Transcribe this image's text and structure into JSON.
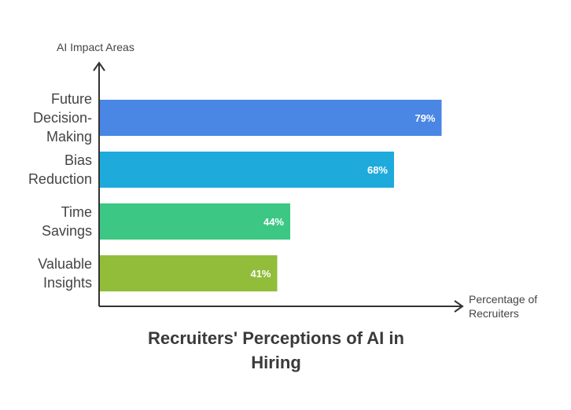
{
  "chart_data": {
    "type": "bar",
    "orientation": "horizontal",
    "title": "Recruiters' Perceptions of AI in Hiring",
    "ylabel": "AI Impact Areas",
    "xlabel": "Percentage of Recruiters",
    "categories": [
      "Future Decision-Making",
      "Bias Reduction",
      "Time Savings",
      "Valuable Insights"
    ],
    "category_lines": [
      [
        "Future",
        "Decision-",
        "Making"
      ],
      [
        "Bias",
        "Reduction"
      ],
      [
        "Time",
        "Savings"
      ],
      [
        "Valuable",
        "Insights"
      ]
    ],
    "values": [
      79,
      68,
      44,
      41
    ],
    "value_labels": [
      "79%",
      "68%",
      "44%",
      "41%"
    ],
    "colors": [
      "#4a86e3",
      "#1faadc",
      "#3cc784",
      "#91bd3a"
    ],
    "xlim": [
      0,
      100
    ],
    "grid": false,
    "legend": "none"
  }
}
